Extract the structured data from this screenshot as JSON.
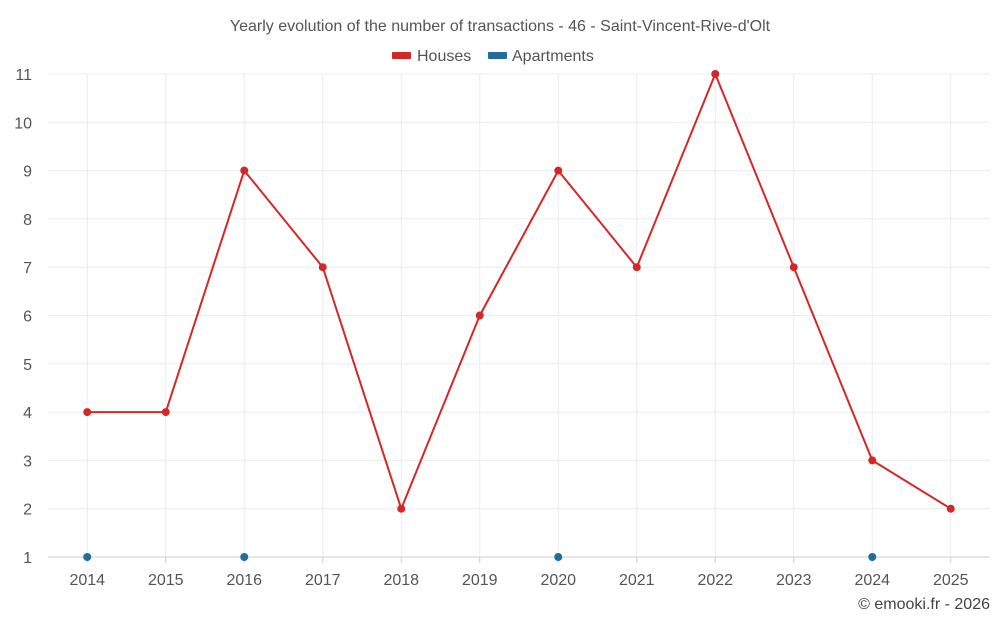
{
  "chart_data": {
    "type": "line",
    "title": "Yearly evolution of the number of transactions - 46 - Saint-Vincent-Rive-d'Olt",
    "categories": [
      "2014",
      "2015",
      "2016",
      "2017",
      "2018",
      "2019",
      "2020",
      "2021",
      "2022",
      "2023",
      "2024",
      "2025"
    ],
    "ylim": [
      1,
      11
    ],
    "yticks": [
      1,
      2,
      3,
      4,
      5,
      6,
      7,
      8,
      9,
      10,
      11
    ],
    "grid": true,
    "legend_position": "top-center",
    "series": [
      {
        "name": "Houses",
        "color": "#d62728",
        "line": true,
        "values": [
          4,
          4,
          9,
          7,
          2,
          6,
          9,
          7,
          11,
          7,
          3,
          2
        ]
      },
      {
        "name": "Apartments",
        "color": "#1f6e9c",
        "line": false,
        "values": [
          1,
          null,
          1,
          null,
          null,
          null,
          1,
          null,
          null,
          null,
          1,
          null
        ]
      }
    ]
  },
  "credit": "© emooki.fr - 2026"
}
